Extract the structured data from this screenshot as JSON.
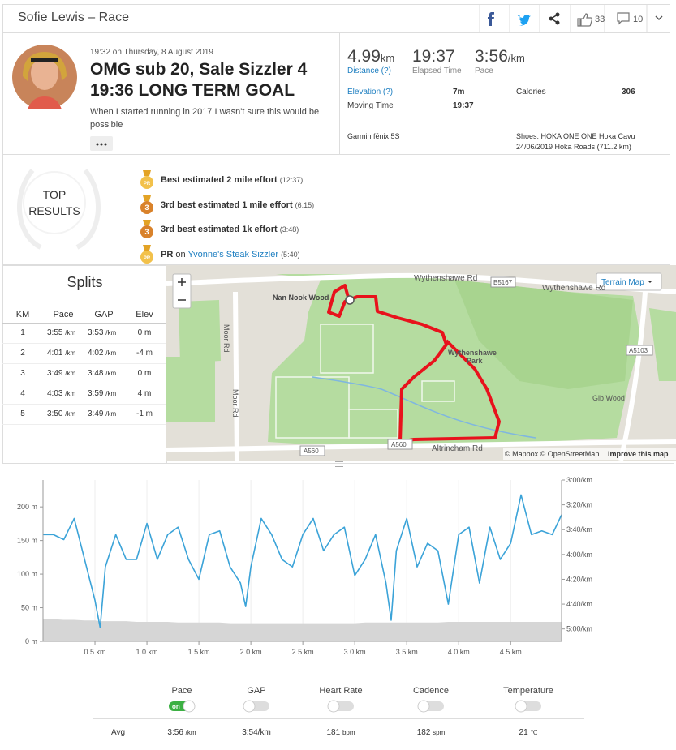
{
  "header": {
    "title": "Sofie Lewis – Race",
    "kudos": "33",
    "comments": "10"
  },
  "activity": {
    "datetime": "19:32 on Thursday, 8 August 2019",
    "title_lines": [
      "OMG sub 20, Sale Sizzler 4",
      "19:36 LONG TERM GOAL"
    ],
    "description_lines": [
      "When I started running in 2017 I wasn't sure this would be",
      "possible"
    ]
  },
  "stats": {
    "distance": {
      "value": "4.99",
      "unit": "km",
      "label": "Distance (?)"
    },
    "elapsed": {
      "value": "19:37",
      "label": "Elapsed Time"
    },
    "pace": {
      "value": "3:56",
      "unit": "/km",
      "label": "Pace"
    },
    "elevation": {
      "label": "Elevation (?)",
      "value": "7m"
    },
    "calories": {
      "label": "Calories",
      "value": "306"
    },
    "moving_time": {
      "label": "Moving Time",
      "value": "19:37"
    },
    "device": "Garmin fēnix 5S",
    "shoes": [
      "Shoes: HOKA ONE ONE Hoka Cavu",
      "24/06/2019 Hoka Roads (711.2 km)"
    ]
  },
  "top_results": {
    "badge": [
      "TOP",
      "RESULTS"
    ],
    "items": [
      {
        "medal": "PR",
        "text": "Best estimated 2 mile effort",
        "detail": "(12:37)"
      },
      {
        "medal": "3",
        "text": "3rd best estimated 1 mile effort",
        "detail": "(6:15)"
      },
      {
        "medal": "3",
        "text": "3rd best estimated 1k effort",
        "detail": "(3:48)"
      },
      {
        "medal": "PR",
        "text": "PR",
        "connector": "on",
        "link": "Yvonne's Steak Sizzler",
        "detail": "(5:40)"
      }
    ]
  },
  "splits": {
    "title": "Splits",
    "columns": [
      "KM",
      "Pace",
      "GAP",
      "Elev"
    ],
    "unit": "/km",
    "rows": [
      {
        "km": "1",
        "pace": "3:55",
        "gap": "3:53",
        "elev": "0 m"
      },
      {
        "km": "2",
        "pace": "4:01",
        "gap": "4:02",
        "elev": "-4 m"
      },
      {
        "km": "3",
        "pace": "3:49",
        "gap": "3:48",
        "elev": "0 m"
      },
      {
        "km": "4",
        "pace": "4:03",
        "gap": "3:59",
        "elev": "4 m"
      },
      {
        "km": "5",
        "pace": "3:50",
        "gap": "3:49",
        "elev": "-1 m"
      }
    ]
  },
  "map": {
    "terrain_button": "Terrain Map",
    "labels": {
      "road1": "Wythenshawe Rd",
      "road2": "Wythenshawe Rd",
      "b5167": "B5167",
      "nan_nook": "Nan Nook Wood",
      "moor1": "Moor Rd",
      "moor2": "Moor Rd",
      "park": [
        "Wythenshawe",
        "Park"
      ],
      "a5103": "A5103",
      "gib": "Gib Wood",
      "a560a": "A560",
      "a560b": "A560",
      "altrincham": "Altrincham Rd"
    },
    "attribution": [
      "© Mapbox © OpenStreetMap",
      "Improve this map"
    ]
  },
  "chart_data": {
    "type": "line",
    "x": [
      0,
      0.1,
      0.2,
      0.3,
      0.4,
      0.5,
      0.55,
      0.6,
      0.7,
      0.8,
      0.9,
      1.0,
      1.1,
      1.2,
      1.3,
      1.4,
      1.5,
      1.6,
      1.7,
      1.8,
      1.9,
      1.95,
      2.0,
      2.1,
      2.2,
      2.3,
      2.4,
      2.5,
      2.6,
      2.7,
      2.8,
      2.9,
      3.0,
      3.1,
      3.2,
      3.3,
      3.35,
      3.4,
      3.5,
      3.6,
      3.7,
      3.8,
      3.9,
      4.0,
      4.1,
      4.2,
      4.3,
      4.4,
      4.5,
      4.6,
      4.7,
      4.8,
      4.9,
      4.99
    ],
    "xlim": [
      0,
      4.99
    ],
    "xticks": [
      {
        "value": 0.5,
        "label": "0.5 km"
      },
      {
        "value": 1.0,
        "label": "1.0 km"
      },
      {
        "value": 1.5,
        "label": "1.5 km"
      },
      {
        "value": 2.0,
        "label": "2.0 km"
      },
      {
        "value": 2.5,
        "label": "2.5 km"
      },
      {
        "value": 3.0,
        "label": "3.0 km"
      },
      {
        "value": 3.5,
        "label": "3.5 km"
      },
      {
        "value": 4.0,
        "label": "4.0 km"
      },
      {
        "value": 4.5,
        "label": "4.5 km"
      }
    ],
    "ylim": [
      0,
      240
    ],
    "yticks": [
      {
        "value": 0,
        "label": "0 m"
      },
      {
        "value": 50,
        "label": "50 m"
      },
      {
        "value": 100,
        "label": "100 m"
      },
      {
        "value": 150,
        "label": "150 m"
      },
      {
        "value": 200,
        "label": "200 m"
      }
    ],
    "y2lim": [
      310,
      180
    ],
    "y2ticks": [
      {
        "value": 180,
        "label": "3:00/km"
      },
      {
        "value": 200,
        "label": "3:20/km"
      },
      {
        "value": 220,
        "label": "3:40/km"
      },
      {
        "value": 240,
        "label": "4:00/km"
      },
      {
        "value": 260,
        "label": "4:20/km"
      },
      {
        "value": 280,
        "label": "4:40/km"
      },
      {
        "value": 300,
        "label": "5:00/km"
      }
    ],
    "grid": true,
    "series": [
      {
        "type": "area",
        "color": "#d6d6d6",
        "values": [
          33,
          33,
          32,
          32,
          31,
          31,
          30,
          30,
          30,
          30,
          29,
          29,
          29,
          29,
          28,
          28,
          28,
          28,
          28,
          27,
          27,
          27,
          27,
          27,
          27,
          27,
          27,
          27,
          27,
          27,
          27,
          27,
          27,
          28,
          28,
          28,
          28,
          28,
          28,
          28,
          28,
          28,
          29,
          29,
          29,
          29,
          29,
          29,
          29,
          29,
          29,
          29,
          29,
          29
        ]
      },
      {
        "type": "line",
        "color": "#3ba3d8",
        "axis": "y2",
        "values": [
          224,
          224,
          228,
          211,
          244,
          277,
          299,
          250,
          224,
          244,
          244,
          215,
          244,
          224,
          218,
          244,
          260,
          224,
          221,
          250,
          263,
          282,
          250,
          211,
          224,
          244,
          250,
          224,
          211,
          237,
          224,
          218,
          257,
          244,
          224,
          263,
          293,
          237,
          211,
          250,
          231,
          237,
          280,
          224,
          218,
          263,
          218,
          244,
          231,
          192,
          224,
          221,
          224,
          208
        ]
      }
    ]
  },
  "toggles": {
    "avg_label": "Avg",
    "items": [
      {
        "label": "Pace",
        "switch": "on",
        "avg": "3:56",
        "unit": "/km"
      },
      {
        "label": "GAP",
        "avg": "3:54/km"
      },
      {
        "label": "Heart Rate",
        "avg": "181",
        "unit": "bpm"
      },
      {
        "label": "Cadence",
        "avg": "182",
        "unit": "spm"
      },
      {
        "label": "Temperature",
        "avg": "21",
        "unit": "℃"
      }
    ]
  }
}
